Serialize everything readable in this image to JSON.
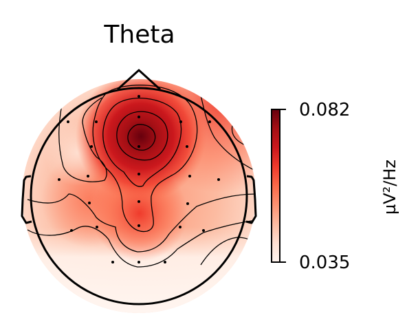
{
  "chart_data": {
    "type": "heatmap",
    "subtype": "eeg-topomap",
    "title": "Theta",
    "colorbar": {
      "min": 0.035,
      "max": 0.082,
      "tick_labels": [
        "0.082",
        "0.035"
      ],
      "label": "µV²/Hz",
      "colormap": "Reds"
    },
    "peaks": [
      {
        "region": "frontal-midline",
        "value": 0.082
      },
      {
        "region": "central-midline",
        "value": 0.055
      }
    ],
    "minimum_region": "posterior",
    "sensor_count": 30,
    "contour_levels": 6
  },
  "colors": {
    "dark_red": "#67000d",
    "red": "#cb181d",
    "mid": "#fb6a4a",
    "light": "#fcbba1",
    "pale": "#fff5f0",
    "outline": "#000000"
  }
}
